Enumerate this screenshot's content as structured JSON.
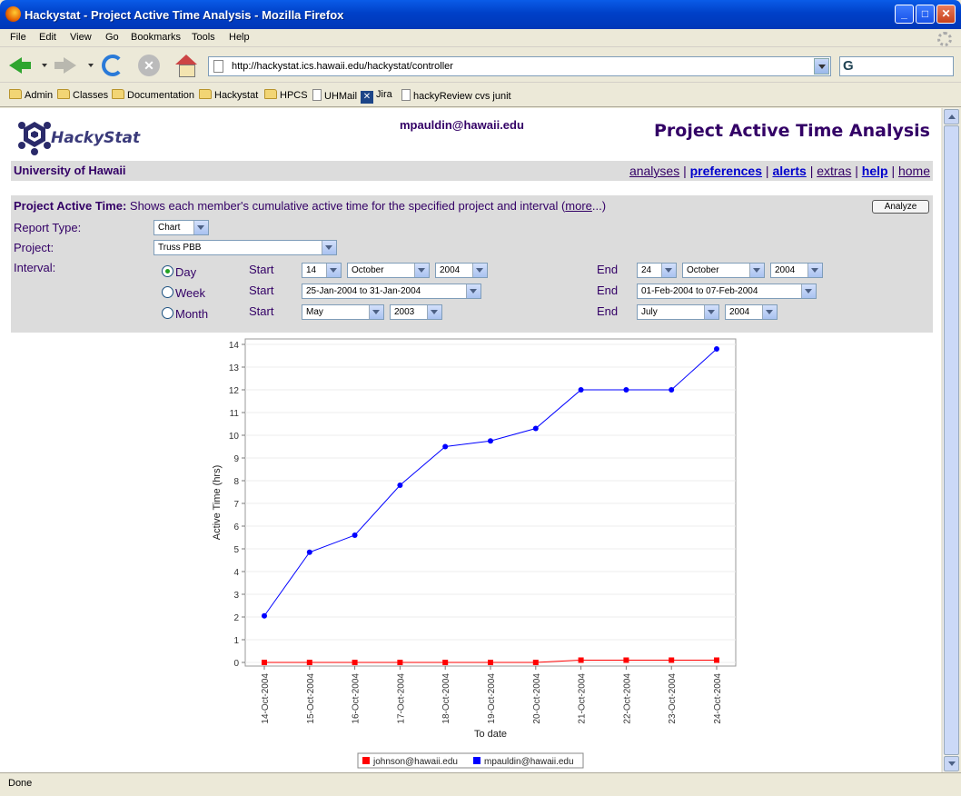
{
  "window": {
    "title": "Hackystat - Project Active Time Analysis - Mozilla Firefox"
  },
  "menu": [
    "File",
    "Edit",
    "View",
    "Go",
    "Bookmarks",
    "Tools",
    "Help"
  ],
  "address": {
    "url": "http://hackystat.ics.hawaii.edu/hackystat/controller"
  },
  "bookmarks": [
    {
      "label": "Admin",
      "icon": "folder-icon"
    },
    {
      "label": "Classes",
      "icon": "folder-icon"
    },
    {
      "label": "Documentation",
      "icon": "folder-icon"
    },
    {
      "label": "Hackystat",
      "icon": "folder-icon"
    },
    {
      "label": "HPCS",
      "icon": "folder-icon"
    },
    {
      "label": "UHMail",
      "icon": "page-icon"
    },
    {
      "label": "Jira",
      "icon": "jira-icon"
    },
    {
      "label": "hackyReview cvs junit",
      "icon": "page-icon"
    }
  ],
  "header": {
    "logo": "HackyStat",
    "user": "mpauldin@hawaii.edu",
    "title": "Project Active Time Analysis"
  },
  "nav": {
    "org": "University of Hawaii",
    "links": [
      "analyses",
      "preferences",
      "alerts",
      "extras",
      "help",
      "home"
    ],
    "sep": "|"
  },
  "form": {
    "desc_label": "Project Active Time:",
    "desc_text": "Shows each member's cumulative active time for the specified project and interval (",
    "more_link": "more",
    "desc_end": "...)",
    "analyze_label": "Analyze",
    "report_type_label": "Report Type:",
    "report_type_value": "Chart",
    "project_label": "Project:",
    "project_value": "Truss PBB",
    "interval_label": "Interval:",
    "start_label": "Start",
    "end_label": "End",
    "day": {
      "label": "Day",
      "start_day": "14",
      "start_month": "October",
      "start_year": "2004",
      "end_day": "24",
      "end_month": "October",
      "end_year": "2004"
    },
    "week": {
      "label": "Week",
      "start": "25-Jan-2004 to 31-Jan-2004",
      "end": "01-Feb-2004 to 07-Feb-2004"
    },
    "month": {
      "label": "Month",
      "start_month": "May",
      "start_year": "2003",
      "end_month": "July",
      "end_year": "2004"
    }
  },
  "chart_data": {
    "type": "line",
    "xlabel": "To date",
    "ylabel": "Active Time (hrs)",
    "ylim": [
      0,
      14
    ],
    "yticks": [
      0,
      1,
      2,
      3,
      4,
      5,
      6,
      7,
      8,
      9,
      10,
      11,
      12,
      13,
      14
    ],
    "categories": [
      "14-Oct-2004",
      "15-Oct-2004",
      "16-Oct-2004",
      "17-Oct-2004",
      "18-Oct-2004",
      "19-Oct-2004",
      "20-Oct-2004",
      "21-Oct-2004",
      "22-Oct-2004",
      "23-Oct-2004",
      "24-Oct-2004"
    ],
    "series": [
      {
        "name": "johnson@hawaii.edu",
        "color": "#ff0000",
        "marker": "square",
        "values": [
          0,
          0,
          0,
          0,
          0,
          0,
          0,
          0.1,
          0.1,
          0.1,
          0.1
        ]
      },
      {
        "name": "mpauldin@hawaii.edu",
        "color": "#0000ff",
        "marker": "circle",
        "values": [
          2.05,
          4.85,
          5.6,
          7.8,
          9.5,
          9.75,
          10.3,
          12.0,
          12.0,
          12.0,
          13.8
        ]
      }
    ],
    "legend": "bottom"
  },
  "status": "Done"
}
